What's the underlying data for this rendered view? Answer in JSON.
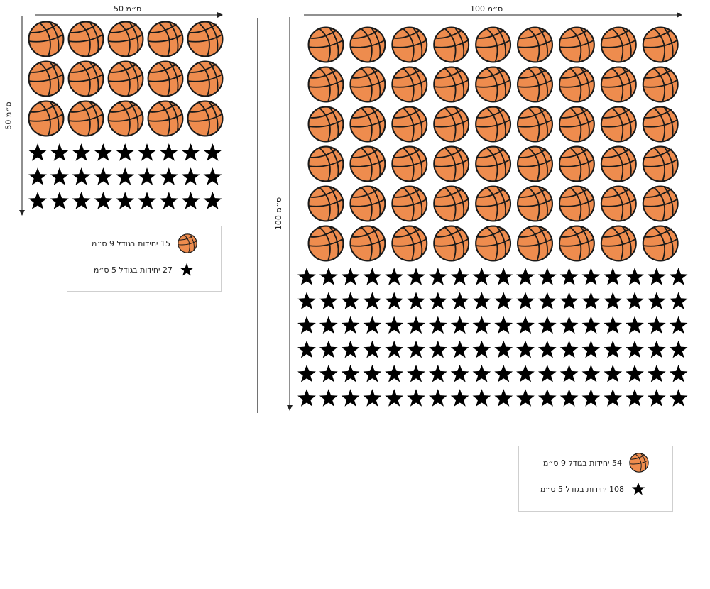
{
  "colors": {
    "ball_fill": "#EE8C4E",
    "outline": "#1a1a1a",
    "star": "#000000",
    "divider": "#444444"
  },
  "small_panel": {
    "width_label": "50 ס״מ",
    "height_label": "50 ס״מ",
    "ball_grid": {
      "rows": 3,
      "cols": 5
    },
    "star_grid": {
      "rows": 3,
      "cols": 9
    },
    "legend": [
      {
        "icon": "basketball-icon",
        "count": "15",
        "text": "יחידות בגודל 9 ס״מ"
      },
      {
        "icon": "star-icon",
        "count": "27",
        "text": "יחידות בגודל 5 ס״מ"
      }
    ]
  },
  "large_panel": {
    "width_label": "100 ס״מ",
    "height_label": "100 ס״מ",
    "ball_grid": {
      "rows": 6,
      "cols": 9
    },
    "star_grid": {
      "rows": 6,
      "cols": 18
    },
    "legend": [
      {
        "icon": "basketball-icon",
        "count": "54",
        "text": "יחידות בגודל 9 ס״מ"
      },
      {
        "icon": "star-icon",
        "count": "108",
        "text": "יחידות בגודל 5 ס״מ"
      }
    ]
  }
}
